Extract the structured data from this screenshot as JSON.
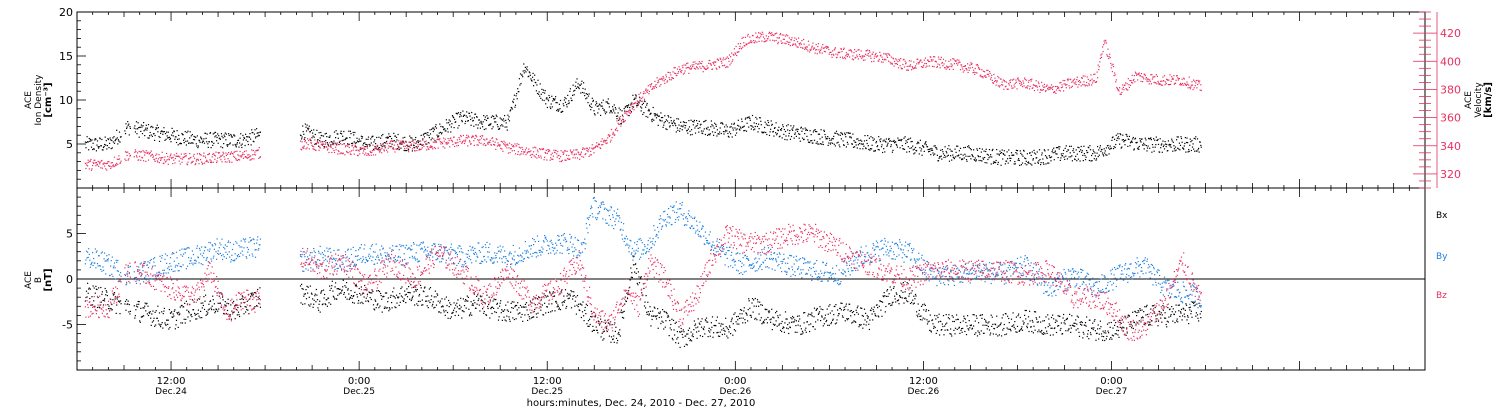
{
  "colors": {
    "bx": "#000000",
    "by": "#1f7fdc",
    "bz": "#e83060",
    "density": "#000000",
    "velocity": "#e83060",
    "axis": "#000000"
  },
  "xaxis": {
    "title": "hours:minutes, Dec. 24, 2010 - Dec. 27, 2010",
    "range_hours": [
      -18,
      68
    ],
    "labels": [
      {
        "hour": -12,
        "time": "12:00",
        "date": "Dec.24"
      },
      {
        "hour": 0,
        "time": "0:00",
        "date": "Dec.25"
      },
      {
        "hour": 12,
        "time": "12:00",
        "date": "Dec.25"
      },
      {
        "hour": 24,
        "time": "0:00",
        "date": "Dec.26"
      },
      {
        "hour": 36,
        "time": "12:00",
        "date": "Dec.26"
      },
      {
        "hour": 48,
        "time": "0:00",
        "date": "Dec.27"
      }
    ]
  },
  "chart_data": [
    {
      "type": "scatter",
      "panel": "plasma",
      "ylabel_left": [
        "ACE",
        "Ion Density",
        "[cm⁻³]"
      ],
      "ylabel_right": [
        "ACE",
        "Velocity",
        "[km/s]"
      ],
      "ylim_left": [
        0,
        20
      ],
      "yticks_left": [
        "5",
        "10",
        "15",
        "20"
      ],
      "ylim_right": [
        310,
        435
      ],
      "yticks_right": [
        "320",
        "340",
        "360",
        "380",
        "400",
        "420"
      ],
      "x_unit": "hours from 0:00 Dec. 25, 2010",
      "series": [
        {
          "key": "density",
          "axis": "left",
          "x": [
            -17.5,
            -16,
            -14.8,
            -13.5,
            -12,
            -10.5,
            -9,
            -7.5,
            -6.5,
            -3.5,
            -2.5,
            -1,
            0.5,
            2,
            3.5,
            5,
            6.5,
            8,
            9.5,
            10.5,
            11.2,
            12,
            13,
            14,
            15,
            16,
            16.8,
            17.5,
            19,
            20.5,
            22,
            23.5,
            25,
            27,
            29,
            31,
            33,
            35,
            37,
            39,
            41,
            43,
            45,
            47,
            48.5,
            50,
            52,
            53.7
          ],
          "y": [
            5,
            5,
            7,
            6.5,
            6,
            5.5,
            5.5,
            5.5,
            6,
            6.5,
            5.5,
            6,
            5,
            5.5,
            5,
            6.5,
            8,
            7.5,
            7.5,
            14,
            12,
            10,
            9.5,
            12,
            9,
            9.5,
            8,
            10,
            8,
            7,
            7,
            6.5,
            7.5,
            6.5,
            6,
            5.5,
            5,
            5,
            4,
            4,
            3.5,
            3.5,
            4,
            4,
            5.5,
            5,
            5,
            5
          ]
        },
        {
          "key": "velocity",
          "axis": "right",
          "x": [
            -17.5,
            -16,
            -14.8,
            -13.5,
            -12,
            -10.5,
            -9,
            -7.5,
            -6.5,
            -3.5,
            -2.5,
            -1,
            0.5,
            2,
            3.5,
            5,
            6.5,
            8,
            9.5,
            11,
            12,
            13,
            14,
            15,
            16,
            16.5,
            17.5,
            19,
            20.5,
            22,
            23.5,
            24.5,
            26,
            27.5,
            29,
            30.5,
            32,
            33.5,
            35,
            36.5,
            38,
            39.5,
            41,
            42.5,
            44,
            45.5,
            47,
            47.5,
            48.5,
            49.5,
            51,
            52.5,
            53.7
          ],
          "y": [
            327,
            327,
            334,
            333,
            331,
            331,
            332,
            333,
            335,
            342,
            340,
            338,
            336,
            340,
            340,
            342,
            344,
            344,
            339,
            336,
            334,
            333,
            334,
            338,
            347,
            356,
            370,
            385,
            395,
            397,
            400,
            415,
            418,
            415,
            410,
            406,
            405,
            403,
            397,
            400,
            398,
            394,
            384,
            385,
            380,
            385,
            388,
            415,
            378,
            390,
            387,
            387,
            382
          ]
        }
      ]
    },
    {
      "type": "scatter",
      "panel": "magnetic-field",
      "ylabel_left": [
        "ACE",
        "B",
        "[nT]"
      ],
      "ylim": [
        -10,
        10
      ],
      "yticks": [
        "-5",
        "0",
        "5"
      ],
      "legend": [
        "Bx",
        "By",
        "Bz"
      ],
      "legend_placement": "right",
      "x_unit": "hours from 0:00 Dec. 25, 2010",
      "series": [
        {
          "key": "bx",
          "name": "Bx",
          "x": [
            -17.5,
            -16.5,
            -14.8,
            -14,
            -13,
            -12,
            -11,
            -10,
            -9,
            -8,
            -7,
            -6.5,
            -3.5,
            -2.5,
            -1.5,
            0,
            1.5,
            3,
            4.5,
            6,
            7.5,
            9,
            10.5,
            12,
            13.5,
            14.5,
            15.5,
            16.5,
            17.5,
            18.5,
            19.5,
            20.5,
            22,
            23.5,
            25,
            26.5,
            28,
            29.5,
            31,
            32.5,
            34,
            35,
            36.5,
            38,
            39.5,
            41,
            42.5,
            44,
            45.5,
            47,
            48.5,
            50,
            51.5,
            53.7
          ],
          "y": [
            -1.5,
            -2,
            -3,
            -3.5,
            -4,
            -4.5,
            -3.5,
            -3,
            -2.5,
            -3.5,
            -2.5,
            -2,
            -1.5,
            -2.5,
            -1,
            -1.5,
            -2.5,
            -1.5,
            -2,
            -3.5,
            -2.5,
            -3.5,
            -3.5,
            -2.5,
            -2,
            -4,
            -5.5,
            -6,
            2,
            -4,
            -4.5,
            -6.5,
            -5,
            -5.5,
            -3,
            -4.5,
            -5,
            -4,
            -3.5,
            -4.5,
            -1.5,
            -1.5,
            -5,
            -5,
            -5,
            -5,
            -4.5,
            -5,
            -5,
            -5.5,
            -5.5,
            -4,
            -4,
            -3.5
          ]
        },
        {
          "key": "by",
          "name": "By",
          "x": [
            -17.5,
            -16.5,
            -14.8,
            -13.5,
            -12,
            -10.5,
            -9,
            -8,
            -7,
            -6.5,
            -3.5,
            -2.5,
            -1,
            0.5,
            2,
            3.5,
            5,
            6.5,
            8,
            9.5,
            11,
            12.5,
            13.5,
            14.2,
            14.8,
            15.5,
            16.5,
            17.5,
            18.5,
            19.5,
            20.5,
            22,
            23,
            24.5,
            26,
            27.5,
            29,
            30.5,
            32,
            33.5,
            35,
            36.5,
            38,
            39.5,
            41,
            42.5,
            44,
            45.5,
            47,
            48.5,
            50,
            51.5,
            53.7
          ],
          "y": [
            2.5,
            2,
            0.5,
            1,
            2,
            2.5,
            3.5,
            3,
            3.5,
            3.5,
            2,
            2.5,
            2,
            3,
            2.5,
            3,
            3,
            2.5,
            3,
            2.5,
            3.5,
            4,
            4,
            3,
            8,
            7.5,
            6.5,
            3,
            4,
            7,
            7.5,
            5,
            3,
            1.5,
            2.5,
            1.5,
            1,
            0.5,
            2.5,
            3.5,
            3,
            0.5,
            0.5,
            1,
            0.5,
            1.5,
            -1,
            0.5,
            -1,
            0.5,
            1.5,
            -1,
            -2
          ]
        },
        {
          "key": "bz",
          "name": "Bz",
          "x": [
            -17.5,
            -16,
            -14.8,
            -13.5,
            -12,
            -10.5,
            -9.5,
            -8.5,
            -7.5,
            -6.5,
            -3.5,
            -2.5,
            -1,
            0.5,
            2,
            3.5,
            5,
            6.5,
            8,
            9.5,
            11,
            12.5,
            14,
            15,
            16,
            17,
            17.8,
            18.5,
            19.5,
            20.5,
            21.5,
            22.5,
            23.5,
            24.5,
            26,
            27.5,
            29,
            30.5,
            32,
            33.5,
            35,
            36.5,
            38,
            39.5,
            41,
            42.5,
            44,
            45.5,
            47,
            48,
            49,
            50,
            51.5,
            52.5,
            53.7
          ],
          "y": [
            -3,
            -3,
            1,
            0.5,
            -1,
            -2,
            1,
            -4,
            -2,
            -2.5,
            2.5,
            1,
            2,
            -1,
            2,
            0,
            3,
            1,
            -2,
            1,
            -2.5,
            -1,
            2,
            -4,
            -5,
            -1,
            -3,
            2,
            0,
            -4,
            -2,
            2.5,
            5,
            4,
            4,
            5,
            5,
            3.5,
            2,
            1,
            0,
            1,
            1,
            1,
            1,
            0.5,
            1,
            -2,
            -2,
            -3,
            -5.5,
            -5.5,
            -2,
            2,
            -2.5
          ]
        }
      ]
    }
  ]
}
